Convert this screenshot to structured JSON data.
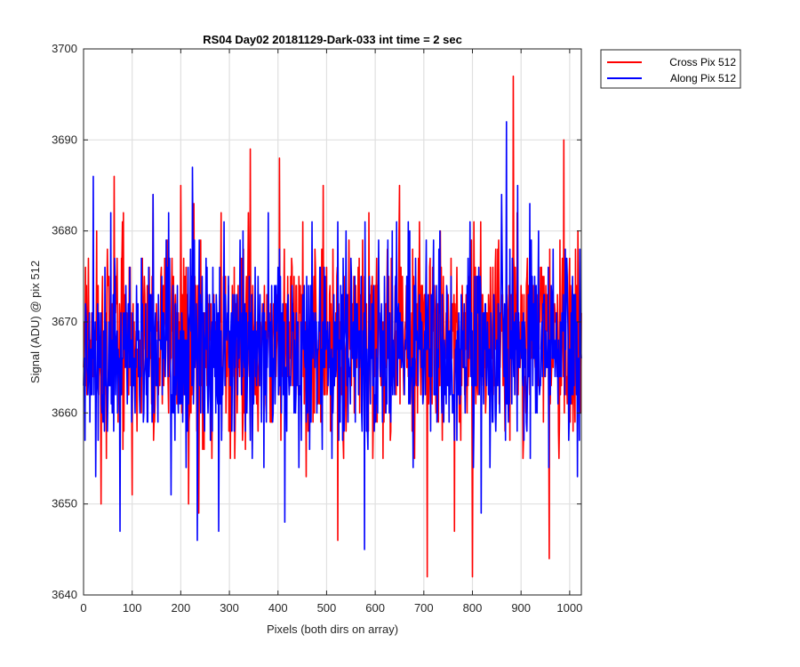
{
  "chart_data": {
    "type": "line",
    "title": "RS04 Day02 20181129-Dark-033 int time = 2 sec",
    "xlabel": "Pixels (both dirs on array)",
    "ylabel": "Signal (ADU) @ pix 512",
    "xlim": [
      0,
      1024
    ],
    "ylim": [
      3640,
      3700
    ],
    "xticks": [
      0,
      100,
      200,
      300,
      400,
      500,
      600,
      700,
      800,
      900,
      1000
    ],
    "yticks": [
      3640,
      3650,
      3660,
      3670,
      3680,
      3690,
      3700
    ],
    "xtick_labels": [
      "0",
      "100",
      "200",
      "300",
      "400",
      "500",
      "600",
      "700",
      "800",
      "900",
      "1000"
    ],
    "ytick_labels": [
      "3640",
      "3650",
      "3660",
      "3670",
      "3680",
      "3690",
      "3700"
    ],
    "grid": true,
    "legend_position": "outside-top-right",
    "series": [
      {
        "name": "Cross Pix 512",
        "color": "#ff0000",
        "approx_mean": 3668,
        "notable_points": [
          {
            "x": 4,
            "y": 3676
          },
          {
            "x": 36,
            "y": 3650
          },
          {
            "x": 63,
            "y": 3686
          },
          {
            "x": 80,
            "y": 3681
          },
          {
            "x": 100,
            "y": 3651
          },
          {
            "x": 143,
            "y": 3684
          },
          {
            "x": 200,
            "y": 3685
          },
          {
            "x": 216,
            "y": 3650
          },
          {
            "x": 227,
            "y": 3683
          },
          {
            "x": 237,
            "y": 3649
          },
          {
            "x": 283,
            "y": 3682
          },
          {
            "x": 343,
            "y": 3689
          },
          {
            "x": 403,
            "y": 3688
          },
          {
            "x": 451,
            "y": 3681
          },
          {
            "x": 458,
            "y": 3653
          },
          {
            "x": 493,
            "y": 3685
          },
          {
            "x": 523,
            "y": 3646
          },
          {
            "x": 587,
            "y": 3682
          },
          {
            "x": 650,
            "y": 3685
          },
          {
            "x": 691,
            "y": 3681
          },
          {
            "x": 707,
            "y": 3642
          },
          {
            "x": 763,
            "y": 3647
          },
          {
            "x": 800,
            "y": 3642
          },
          {
            "x": 817,
            "y": 3681
          },
          {
            "x": 884,
            "y": 3697
          },
          {
            "x": 940,
            "y": 3676
          },
          {
            "x": 958,
            "y": 3644
          },
          {
            "x": 988,
            "y": 3690
          },
          {
            "x": 1012,
            "y": 3678
          }
        ]
      },
      {
        "name": "Along Pix 512",
        "color": "#0000ff",
        "approx_mean": 3667,
        "notable_points": [
          {
            "x": 3,
            "y": 3657
          },
          {
            "x": 20,
            "y": 3686
          },
          {
            "x": 25,
            "y": 3653
          },
          {
            "x": 56,
            "y": 3682
          },
          {
            "x": 75,
            "y": 3647
          },
          {
            "x": 143,
            "y": 3684
          },
          {
            "x": 175,
            "y": 3682
          },
          {
            "x": 180,
            "y": 3651
          },
          {
            "x": 224,
            "y": 3687
          },
          {
            "x": 234,
            "y": 3646
          },
          {
            "x": 278,
            "y": 3647
          },
          {
            "x": 328,
            "y": 3680
          },
          {
            "x": 380,
            "y": 3682
          },
          {
            "x": 414,
            "y": 3648
          },
          {
            "x": 540,
            "y": 3680
          },
          {
            "x": 578,
            "y": 3645
          },
          {
            "x": 635,
            "y": 3680
          },
          {
            "x": 733,
            "y": 3680
          },
          {
            "x": 795,
            "y": 3681
          },
          {
            "x": 818,
            "y": 3649
          },
          {
            "x": 860,
            "y": 3684
          },
          {
            "x": 870,
            "y": 3692
          },
          {
            "x": 893,
            "y": 3685
          },
          {
            "x": 918,
            "y": 3683
          },
          {
            "x": 966,
            "y": 3678
          },
          {
            "x": 998,
            "y": 3657
          },
          {
            "x": 1016,
            "y": 3653
          }
        ]
      }
    ]
  }
}
